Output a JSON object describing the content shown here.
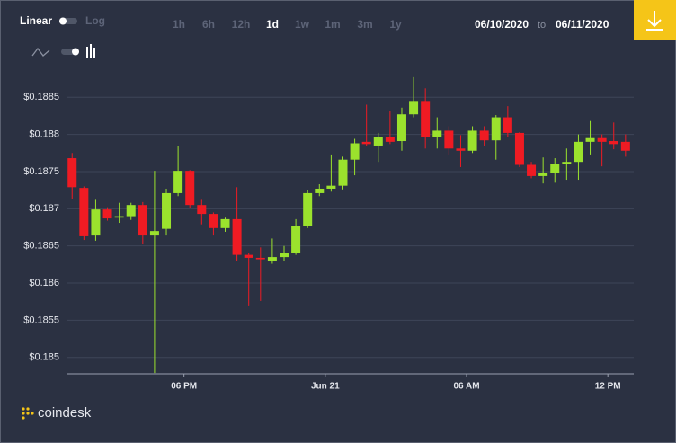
{
  "controls": {
    "scale_options": [
      "Linear",
      "Log"
    ],
    "ranges": [
      "1h",
      "6h",
      "12h",
      "1d",
      "1w",
      "1m",
      "3m",
      "1y"
    ],
    "selected_range": "1d",
    "date_from": "06/10/2020",
    "date_separator": "to",
    "date_to": "06/11/2020"
  },
  "brand": "coindesk",
  "chart_data": {
    "type": "candlestick",
    "x": [
      0,
      1,
      2,
      3,
      4,
      5,
      6,
      7,
      8,
      9,
      10,
      11,
      12,
      13,
      14,
      15,
      16,
      17,
      18,
      19,
      20,
      21,
      22,
      23,
      24,
      25,
      26,
      27,
      28,
      29,
      30,
      31,
      32,
      33,
      34,
      35,
      36,
      37,
      38,
      39,
      40,
      41,
      42,
      43,
      44,
      45,
      46,
      47
    ],
    "open": [
      0.18768,
      0.18728,
      0.18664,
      0.18699,
      0.18688,
      0.1869,
      0.18705,
      0.18664,
      0.18673,
      0.18721,
      0.18751,
      0.18705,
      0.18693,
      0.18674,
      0.18686,
      0.18638,
      0.18634,
      0.1863,
      0.18635,
      0.18641,
      0.18677,
      0.18721,
      0.18727,
      0.18731,
      0.18766,
      0.1879,
      0.18785,
      0.18796,
      0.18791,
      0.18827,
      0.18845,
      0.18797,
      0.18805,
      0.18781,
      0.18778,
      0.18805,
      0.18792,
      0.18823,
      0.18802,
      0.18759,
      0.18744,
      0.18748,
      0.1876,
      0.18763,
      0.1879,
      0.18795,
      0.18791,
      0.1879
    ],
    "high": [
      0.18775,
      0.1873,
      0.18712,
      0.18702,
      0.18708,
      0.18708,
      0.18709,
      0.18751,
      0.18727,
      0.18785,
      0.18752,
      0.18712,
      0.18695,
      0.18688,
      0.18729,
      0.1864,
      0.18648,
      0.1866,
      0.1865,
      0.18686,
      0.18725,
      0.18733,
      0.18773,
      0.1877,
      0.18794,
      0.1884,
      0.18802,
      0.18831,
      0.18836,
      0.18877,
      0.18862,
      0.18823,
      0.18811,
      0.18799,
      0.18811,
      0.18811,
      0.18826,
      0.18838,
      0.18803,
      0.18763,
      0.18769,
      0.18768,
      0.18781,
      0.188,
      0.18818,
      0.188,
      0.18816,
      0.188
    ],
    "low": [
      0.18713,
      0.18658,
      0.18657,
      0.18684,
      0.18681,
      0.18685,
      0.18652,
      0.18479,
      0.18664,
      0.18717,
      0.18701,
      0.18679,
      0.18664,
      0.18669,
      0.1863,
      0.1857,
      0.18576,
      0.18626,
      0.1863,
      0.18638,
      0.18674,
      0.18717,
      0.18723,
      0.18726,
      0.18745,
      0.18784,
      0.18763,
      0.18787,
      0.18778,
      0.18823,
      0.18781,
      0.18781,
      0.18773,
      0.18756,
      0.18775,
      0.18785,
      0.18766,
      0.18797,
      0.18756,
      0.18741,
      0.18734,
      0.18735,
      0.18739,
      0.18739,
      0.18773,
      0.18757,
      0.1878,
      0.1877
    ],
    "close": [
      0.18729,
      0.18663,
      0.18699,
      0.18687,
      0.1869,
      0.18705,
      0.18664,
      0.1867,
      0.18721,
      0.18751,
      0.18705,
      0.18693,
      0.18674,
      0.18686,
      0.18638,
      0.18634,
      0.18632,
      0.18635,
      0.18641,
      0.18677,
      0.18721,
      0.18727,
      0.18731,
      0.18766,
      0.18788,
      0.18787,
      0.18796,
      0.1879,
      0.18827,
      0.18845,
      0.18797,
      0.18805,
      0.18781,
      0.18778,
      0.18805,
      0.18792,
      0.18823,
      0.18802,
      0.18759,
      0.18744,
      0.18748,
      0.1876,
      0.18763,
      0.1879,
      0.18795,
      0.1879,
      0.18787,
      0.18778
    ],
    "up_color": "#9be22d",
    "down_color": "#ef1b23",
    "xlim": [
      -0.4,
      47.7
    ],
    "xticks": [
      {
        "value": 9.5,
        "label": "06 PM"
      },
      {
        "value": 21.5,
        "label": "Jun 21"
      },
      {
        "value": 33.5,
        "label": "06 AM"
      },
      {
        "value": 45.5,
        "label": "12 PM"
      }
    ],
    "ylim": [
      0.18478,
      0.18872
    ],
    "yticks": [
      {
        "value": 0.185,
        "label": "$0.185"
      },
      {
        "value": 0.1855,
        "label": "$0.1855"
      },
      {
        "value": 0.186,
        "label": "$0.186"
      },
      {
        "value": 0.1865,
        "label": "$0.1865"
      },
      {
        "value": 0.187,
        "label": "$0.187"
      },
      {
        "value": 0.1875,
        "label": "$0.1875"
      },
      {
        "value": 0.188,
        "label": "$0.188"
      },
      {
        "value": 0.1885,
        "label": "$0.1885"
      }
    ],
    "grid": true
  }
}
